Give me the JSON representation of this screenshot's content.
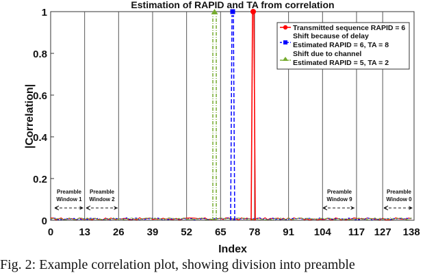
{
  "chart_data": {
    "type": "line",
    "title": "Estimation of RAPID and TA from correlation",
    "xlabel": "Index",
    "ylabel": "|Correlation|",
    "xlim": [
      0,
      139
    ],
    "ylim": [
      0,
      1
    ],
    "xticks": [
      0,
      13,
      26,
      39,
      52,
      65,
      78,
      91,
      104,
      117,
      127,
      138
    ],
    "yticks": [
      0,
      0.2,
      0.4,
      0.6,
      0.8,
      1
    ],
    "ytick_labels": [
      "0",
      "0.2",
      "0.4",
      "0.6",
      "0.8",
      "1"
    ],
    "vertical_gridlines_at": [
      13,
      26,
      39,
      52,
      65,
      78,
      91,
      104,
      117,
      127
    ],
    "grid": "vertical only",
    "legend_position": "upper right",
    "series": [
      {
        "name": "Transmitted sequence RAPID = 6",
        "color": "#ff0000",
        "style": "solid",
        "marker": "circle",
        "peak_index": 78,
        "peak_value": 1.0,
        "noise_floor": 0.01
      },
      {
        "name": "Shift because of delay / Estimated RAPID = 6, TA = 8",
        "color": "#0000ff",
        "style": "dashed",
        "marker": "square",
        "peak_index": 70,
        "peak_value": 1.0,
        "noise_floor": 0.01
      },
      {
        "name": "Shift due to channel / Estimated RAPID = 5, TA = 2",
        "color": "#77ac30",
        "style": "dash-dot",
        "marker": "triangle",
        "peak_index": 63,
        "peak_value": 1.0,
        "noise_floor": 0.01
      }
    ],
    "annotations": [
      {
        "text": "Preamble Window 1",
        "from": 0,
        "to": 13
      },
      {
        "text": "Preamble Window 2",
        "from": 13,
        "to": 26
      },
      {
        "text": "Preamble Window 9",
        "from": 104,
        "to": 117
      },
      {
        "text": "Preamble Window 0",
        "from": 127,
        "to": 138
      }
    ]
  },
  "legend": {
    "line1": "Transmitted sequence RAPID = 6",
    "line2": "Shift because of delay",
    "line3": "Estimated RAPID = 6, TA = 8",
    "line4": "Shift due to channel",
    "line5": "Estimated RAPID = 5, TA = 2"
  },
  "annotations": {
    "w1a": "Preamble",
    "w1b": "Window 1",
    "w2a": "Preamble",
    "w2b": "Window 2",
    "w9a": "Preamble",
    "w9b": "Window 9",
    "w0a": "Preamble",
    "w0b": "Window 0"
  },
  "caption": "Fig. 2: Example correlation plot, showing division into preamble"
}
